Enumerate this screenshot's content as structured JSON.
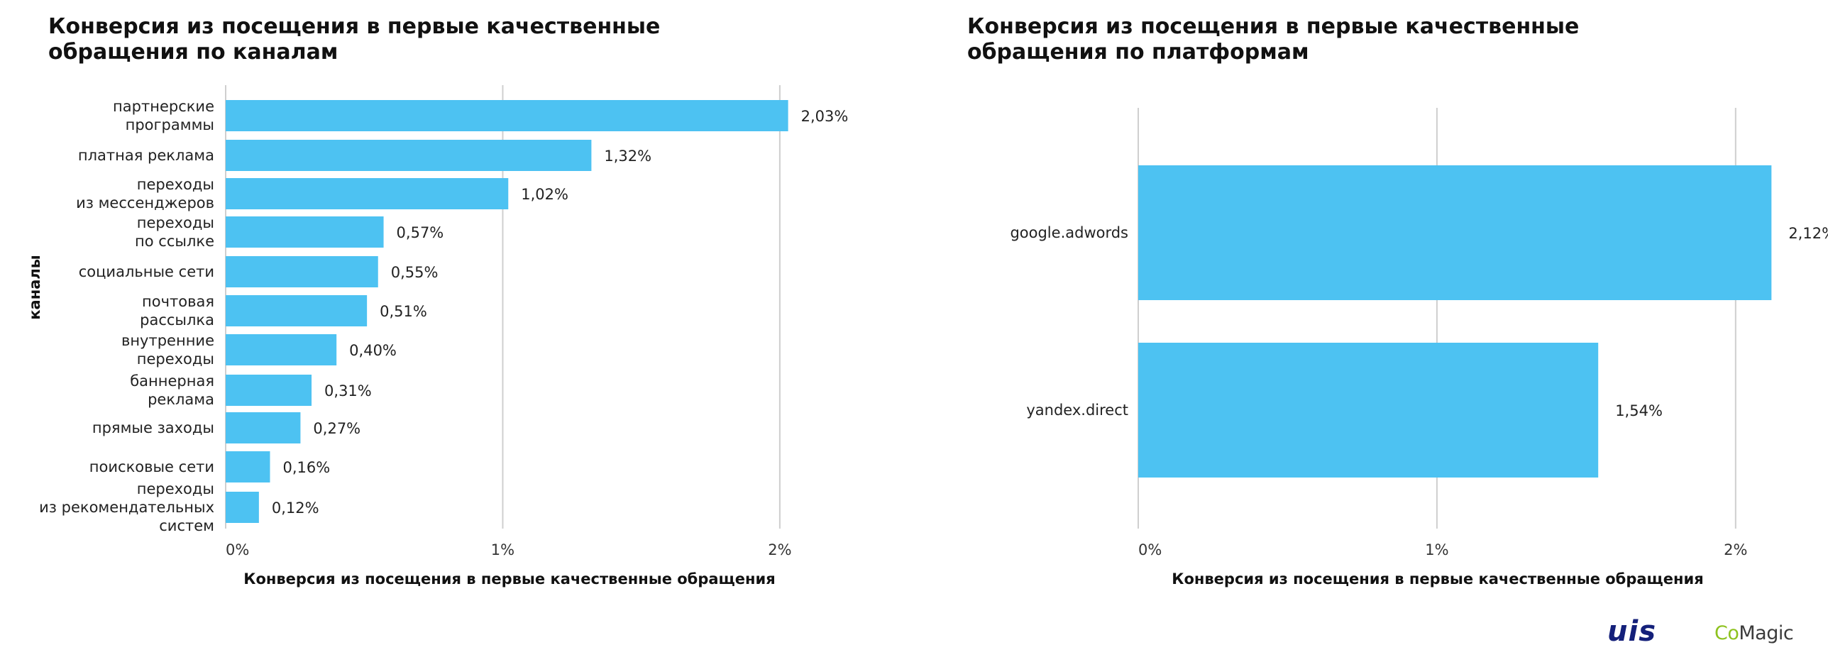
{
  "chart_data": [
    {
      "type": "bar",
      "orientation": "horizontal",
      "title": "Конверсия из посещения в первые качественные обращения по каналам",
      "xlabel": "Конверсия из посещения в первые качественные обращения",
      "ylabel": "каналы",
      "categories": [
        [
          "партнерские",
          "программы"
        ],
        [
          "платная реклама"
        ],
        [
          "переходы",
          "из мессенджеров"
        ],
        [
          "переходы",
          "по ссылке"
        ],
        [
          "социальные сети"
        ],
        [
          "почтовая",
          "рассылка"
        ],
        [
          "внутренние",
          "переходы"
        ],
        [
          "баннерная",
          "реклама"
        ],
        [
          "прямые заходы"
        ],
        [
          "поисковые сети"
        ],
        [
          "переходы",
          "из рекомендательных",
          "систем"
        ]
      ],
      "values": [
        2.03,
        1.32,
        1.02,
        0.57,
        0.55,
        0.51,
        0.4,
        0.31,
        0.27,
        0.16,
        0.12
      ],
      "value_labels": [
        "2,03%",
        "1,32%",
        "1,02%",
        "0,57%",
        "0,55%",
        "0,51%",
        "0,40%",
        "0,31%",
        "0,27%",
        "0,16%",
        "0,12%"
      ],
      "xlim": [
        0,
        2.2
      ],
      "xticks": [
        0,
        1,
        2
      ],
      "xtick_labels": [
        "0%",
        "1%",
        "2%"
      ],
      "grid": true,
      "bar_color": "#4dc2f2"
    },
    {
      "type": "bar",
      "orientation": "horizontal",
      "title": "Конверсия из посещения в первые качественные обращения по платформам",
      "xlabel": "Конверсия из посещения в первые качественные обращения",
      "ylabel": "",
      "categories": [
        [
          "google.adwords"
        ],
        [
          "yandex.direct"
        ]
      ],
      "values": [
        2.12,
        1.54
      ],
      "value_labels": [
        "2,12%",
        "1,54%"
      ],
      "xlim": [
        0,
        2.2
      ],
      "xticks": [
        0,
        1,
        2
      ],
      "xtick_labels": [
        "0%",
        "1%",
        "2%"
      ],
      "grid": true,
      "bar_color": "#4dc2f2"
    }
  ],
  "logos": {
    "uis": "uis",
    "comagic_co": "Co",
    "comagic_rest": "Magic"
  },
  "colors": {
    "bar": "#4dc2f2",
    "grid": "#cfcfcf",
    "uis_logo": "#14207a",
    "comagic_green": "#8ec21f"
  }
}
